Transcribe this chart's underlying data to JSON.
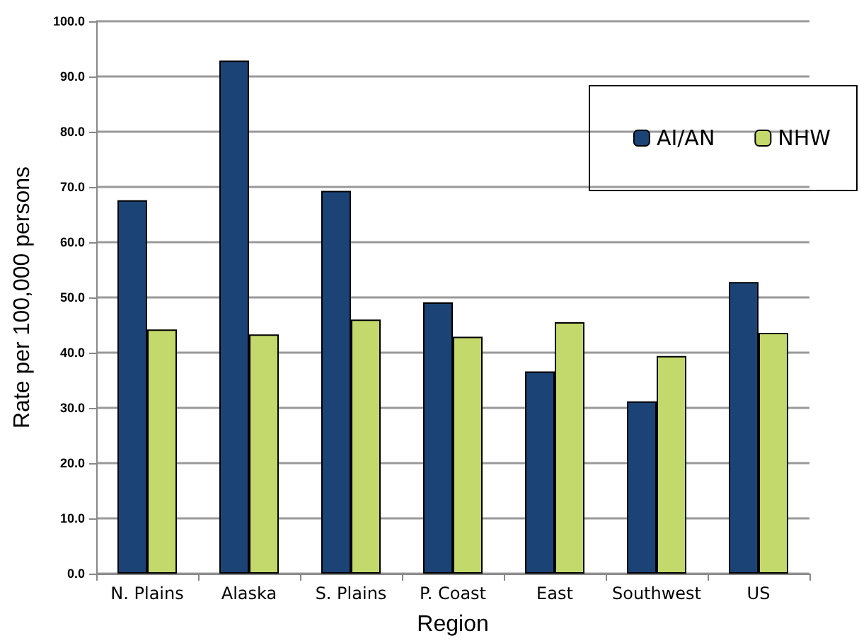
{
  "chart_data": {
    "type": "bar",
    "xlabel": "Region",
    "ylabel": "Rate per 100,000 persons",
    "categories": [
      "N. Plains",
      "Alaska",
      "S. Plains",
      "P. Coast",
      "East",
      "Southwest",
      "US"
    ],
    "series": [
      {
        "name": "AI/AN",
        "color": "#1c4375",
        "values": [
          67.6,
          92.9,
          69.3,
          49.1,
          36.6,
          31.2,
          52.8
        ]
      },
      {
        "name": "NHW",
        "color": "#c3d96b",
        "values": [
          44.2,
          43.3,
          46.0,
          42.9,
          45.5,
          39.4,
          43.6
        ]
      }
    ],
    "ylim": [
      0,
      100
    ],
    "yticks": [
      {
        "value": 0,
        "label": "0.0"
      },
      {
        "value": 10,
        "label": "10.0"
      },
      {
        "value": 20,
        "label": "20.0"
      },
      {
        "value": 30,
        "label": "30.0"
      },
      {
        "value": 40,
        "label": "40.0"
      },
      {
        "value": 50,
        "label": "50.0"
      },
      {
        "value": 60,
        "label": "60.0"
      },
      {
        "value": 70,
        "label": "70.0"
      },
      {
        "value": 80,
        "label": "80.0"
      },
      {
        "value": 90,
        "label": "90.0"
      },
      {
        "value": 100,
        "label": "100.0"
      }
    ],
    "grid": "y",
    "legend": "top right"
  }
}
